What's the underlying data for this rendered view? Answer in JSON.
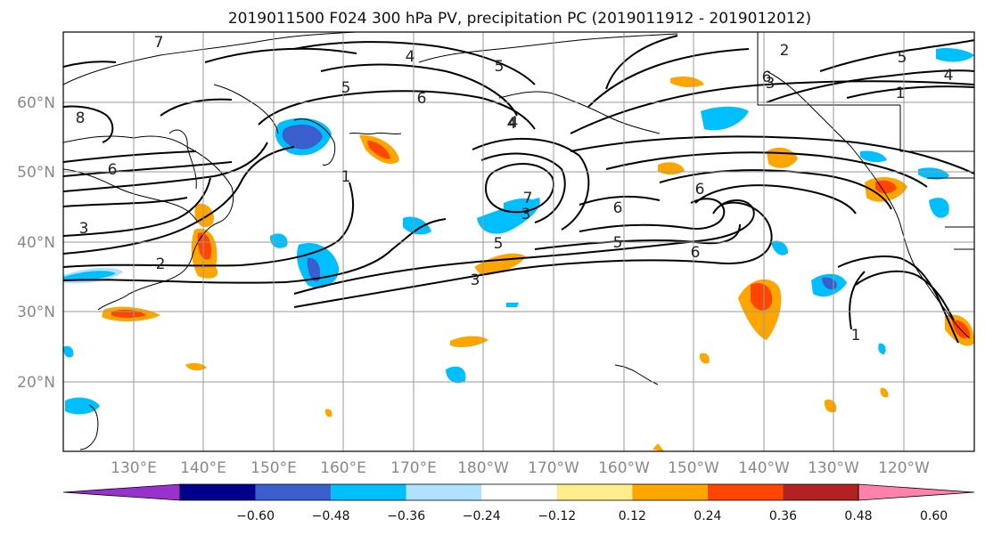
{
  "title": "2019011500 F024 300 hPa PV, precipitation PC (2019011912 - 2019012012)",
  "lat_ticks": [
    "60°N",
    "50°N",
    "40°N",
    "30°N",
    "20°N"
  ],
  "lon_ticks": [
    "130°E",
    "140°E",
    "150°E",
    "160°E",
    "170°E",
    "180°W",
    "170°W",
    "160°W",
    "150°W",
    "140°W",
    "130°W",
    "120°W"
  ],
  "colorbar": {
    "colors": [
      "#9932cc",
      "#00008b",
      "#3a5fcd",
      "#00bfff",
      "#b0e2ff",
      "#ffffff",
      "#ffec8b",
      "#ffa500",
      "#ff4500",
      "#b22222",
      "#ff82ab"
    ],
    "tick_labels": [
      "−0.60",
      "−0.48",
      "−0.36",
      "−0.24",
      "−0.12",
      "0.12",
      "0.24",
      "0.36",
      "0.48",
      "0.60"
    ]
  },
  "contour_labels": [
    "7",
    "8",
    "6",
    "5",
    "5",
    "4",
    "3",
    "2",
    "1",
    "1",
    "6",
    "7",
    "5",
    "4",
    "3",
    "3",
    "6",
    "5",
    "6",
    "6",
    "6",
    "3",
    "2",
    "1",
    "4",
    "5",
    "4"
  ],
  "precip_colors": {
    "blue_light": "#b0e2ff",
    "blue": "#00bfff",
    "blue_dark": "#3a5fcd",
    "orange_light": "#ffec8b",
    "orange": "#ffa500",
    "red": "#ff4500"
  }
}
